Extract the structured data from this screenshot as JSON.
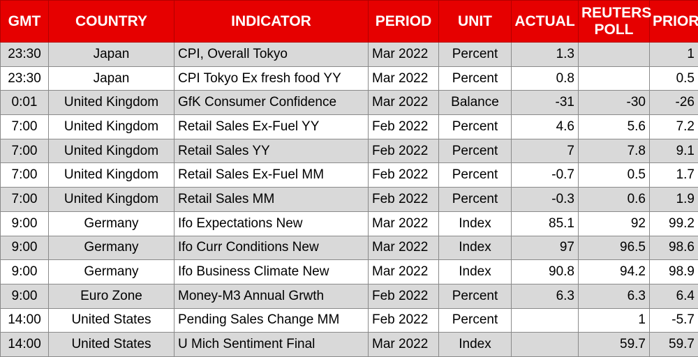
{
  "headers": {
    "gmt": "GMT",
    "country": "COUNTRY",
    "indicator": "INDICATOR",
    "period": "PERIOD",
    "unit": "UNIT",
    "actual": "ACTUAL",
    "poll_line1": "REUTERS",
    "poll_line2": "POLL",
    "prior": "PRIOR"
  },
  "rows": [
    {
      "gmt": "23:30",
      "country": "Japan",
      "indicator": "CPI, Overall Tokyo",
      "period": "Mar 2022",
      "unit": "Percent",
      "actual": "1.3",
      "poll": "",
      "prior": "1"
    },
    {
      "gmt": "23:30",
      "country": "Japan",
      "indicator": "CPI Tokyo Ex fresh food YY",
      "period": "Mar 2022",
      "unit": "Percent",
      "actual": "0.8",
      "poll": "",
      "prior": "0.5"
    },
    {
      "gmt": "0:01",
      "country": "United Kingdom",
      "indicator": "GfK Consumer Confidence",
      "period": "Mar 2022",
      "unit": "Balance",
      "actual": "-31",
      "poll": "-30",
      "prior": "-26"
    },
    {
      "gmt": "7:00",
      "country": "United Kingdom",
      "indicator": "Retail Sales Ex-Fuel YY",
      "period": "Feb 2022",
      "unit": "Percent",
      "actual": "4.6",
      "poll": "5.6",
      "prior": "7.2"
    },
    {
      "gmt": "7:00",
      "country": "United Kingdom",
      "indicator": "Retail Sales YY",
      "period": "Feb 2022",
      "unit": "Percent",
      "actual": "7",
      "poll": "7.8",
      "prior": "9.1"
    },
    {
      "gmt": "7:00",
      "country": "United Kingdom",
      "indicator": "Retail Sales Ex-Fuel MM",
      "period": "Feb 2022",
      "unit": "Percent",
      "actual": "-0.7",
      "poll": "0.5",
      "prior": "1.7"
    },
    {
      "gmt": "7:00",
      "country": "United Kingdom",
      "indicator": "Retail Sales MM",
      "period": "Feb 2022",
      "unit": "Percent",
      "actual": "-0.3",
      "poll": "0.6",
      "prior": "1.9"
    },
    {
      "gmt": "9:00",
      "country": "Germany",
      "indicator": "Ifo Expectations New",
      "period": "Mar 2022",
      "unit": "Index",
      "actual": "85.1",
      "poll": "92",
      "prior": "99.2"
    },
    {
      "gmt": "9:00",
      "country": "Germany",
      "indicator": "Ifo Curr Conditions New",
      "period": "Mar 2022",
      "unit": "Index",
      "actual": "97",
      "poll": "96.5",
      "prior": "98.6"
    },
    {
      "gmt": "9:00",
      "country": "Germany",
      "indicator": "Ifo Business Climate New",
      "period": "Mar 2022",
      "unit": "Index",
      "actual": "90.8",
      "poll": "94.2",
      "prior": "98.9"
    },
    {
      "gmt": "9:00",
      "country": "Euro Zone",
      "indicator": "Money-M3 Annual Grwth",
      "period": "Feb 2022",
      "unit": "Percent",
      "actual": "6.3",
      "poll": "6.3",
      "prior": "6.4"
    },
    {
      "gmt": "14:00",
      "country": "United States",
      "indicator": "Pending Sales Change MM",
      "period": "Feb 2022",
      "unit": "Percent",
      "actual": "",
      "poll": "1",
      "prior": "-5.7"
    },
    {
      "gmt": "14:00",
      "country": "United States",
      "indicator": "U Mich Sentiment Final",
      "period": "Mar 2022",
      "unit": "Index",
      "actual": "",
      "poll": "59.7",
      "prior": "59.7"
    }
  ],
  "colors": {
    "header_bg": "#e60000",
    "header_text": "#ffffff",
    "row_shade": "#d9d9d9",
    "row_plain": "#ffffff"
  }
}
